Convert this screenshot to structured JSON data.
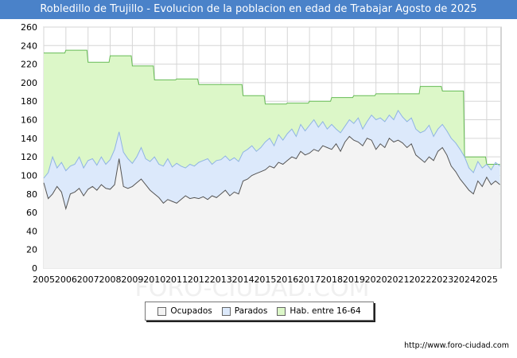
{
  "page": {
    "title": "Robledillo de Trujillo - Evolucion de la poblacion en edad de Trabajar Agosto de 2025",
    "footer": "http://www.foro-ciudad.com",
    "watermark": "FORO-CIUDAD.COM"
  },
  "colors": {
    "title_bg": "#4a82c9",
    "hab_fill": "#dcf7c8",
    "hab_line": "#66bb55",
    "parados_fill": "#dce9fb",
    "parados_line": "#8fb4e3",
    "ocupados_fill": "#f3f3f3",
    "ocupados_line": "#555555",
    "grid": "#d6d6d6"
  },
  "chart_data": {
    "type": "area",
    "title": "Robledillo de Trujillo - Evolucion de la poblacion en edad de Trabajar Agosto de 2025",
    "xlabel": "",
    "ylabel": "",
    "xlim": [
      2005,
      2025.65
    ],
    "ylim": [
      0,
      260
    ],
    "yticks": [
      0,
      20,
      40,
      60,
      80,
      100,
      120,
      140,
      160,
      180,
      200,
      220,
      240,
      260
    ],
    "xticks": [
      "2005",
      "2006",
      "2007",
      "2008",
      "2009",
      "2010",
      "2011",
      "2012",
      "2013",
      "2014",
      "2015",
      "2016",
      "2017",
      "2018",
      "2019",
      "2020",
      "2021",
      "2022",
      "2023",
      "2024",
      "2025"
    ],
    "grid": true,
    "legend_position": "bottom",
    "legend": [
      "Ocupados",
      "Parados",
      "Hab. entre 16-64"
    ],
    "series": [
      {
        "name": "Hab. entre 16-64",
        "x": [
          2005.0,
          2005.95,
          2006.0,
          2006.95,
          2007.0,
          2007.95,
          2008.0,
          2008.95,
          2009.0,
          2009.95,
          2010.0,
          2010.95,
          2011.0,
          2011.95,
          2012.0,
          2012.95,
          2013.0,
          2013.95,
          2014.0,
          2014.95,
          2015.0,
          2015.95,
          2016.0,
          2016.95,
          2017.0,
          2017.95,
          2018.0,
          2018.95,
          2019.0,
          2019.95,
          2020.0,
          2020.95,
          2021.0,
          2021.95,
          2022.0,
          2022.95,
          2023.0,
          2023.95,
          2024.0,
          2024.95,
          2025.0,
          2025.6
        ],
        "values": [
          232,
          232,
          235,
          235,
          222,
          222,
          229,
          229,
          218,
          218,
          203,
          203,
          204,
          204,
          198,
          198,
          198,
          198,
          186,
          186,
          177,
          177,
          178,
          178,
          180,
          180,
          184,
          184,
          186,
          186,
          188,
          188,
          188,
          188,
          196,
          196,
          191,
          191,
          120,
          120,
          112,
          112
        ]
      },
      {
        "name": "Parados",
        "x": [
          2005.0,
          2005.2,
          2005.4,
          2005.6,
          2005.8,
          2006.0,
          2006.2,
          2006.4,
          2006.6,
          2006.8,
          2007.0,
          2007.2,
          2007.4,
          2007.6,
          2007.8,
          2008.0,
          2008.2,
          2008.4,
          2008.6,
          2008.8,
          2009.0,
          2009.2,
          2009.4,
          2009.6,
          2009.8,
          2010.0,
          2010.2,
          2010.4,
          2010.6,
          2010.8,
          2011.0,
          2011.2,
          2011.4,
          2011.6,
          2011.8,
          2012.0,
          2012.2,
          2012.4,
          2012.6,
          2012.8,
          2013.0,
          2013.2,
          2013.4,
          2013.6,
          2013.8,
          2014.0,
          2014.2,
          2014.4,
          2014.6,
          2014.8,
          2015.0,
          2015.2,
          2015.4,
          2015.6,
          2015.8,
          2016.0,
          2016.2,
          2016.4,
          2016.6,
          2016.8,
          2017.0,
          2017.2,
          2017.4,
          2017.6,
          2017.8,
          2018.0,
          2018.2,
          2018.4,
          2018.6,
          2018.8,
          2019.0,
          2019.2,
          2019.4,
          2019.6,
          2019.8,
          2020.0,
          2020.2,
          2020.4,
          2020.6,
          2020.8,
          2021.0,
          2021.2,
          2021.4,
          2021.6,
          2021.8,
          2022.0,
          2022.2,
          2022.4,
          2022.6,
          2022.8,
          2023.0,
          2023.2,
          2023.4,
          2023.6,
          2023.8,
          2024.0,
          2024.2,
          2024.4,
          2024.6,
          2024.8,
          2025.0,
          2025.2,
          2025.4,
          2025.6
        ],
        "values": [
          97,
          103,
          120,
          108,
          114,
          105,
          110,
          112,
          120,
          108,
          116,
          118,
          111,
          120,
          112,
          117,
          128,
          147,
          125,
          118,
          113,
          120,
          130,
          118,
          115,
          120,
          112,
          110,
          118,
          109,
          113,
          110,
          108,
          112,
          110,
          114,
          116,
          118,
          112,
          116,
          117,
          121,
          116,
          119,
          115,
          125,
          128,
          132,
          126,
          130,
          136,
          140,
          132,
          144,
          138,
          145,
          150,
          142,
          155,
          148,
          154,
          160,
          152,
          158,
          150,
          155,
          150,
          146,
          153,
          160,
          156,
          162,
          150,
          158,
          165,
          160,
          162,
          158,
          165,
          160,
          170,
          163,
          158,
          162,
          150,
          146,
          148,
          154,
          142,
          150,
          155,
          148,
          140,
          135,
          128,
          120,
          108,
          103,
          115,
          108,
          112,
          106,
          114,
          110
        ]
      },
      {
        "name": "Ocupados",
        "x": [
          2005.0,
          2005.2,
          2005.4,
          2005.6,
          2005.8,
          2006.0,
          2006.2,
          2006.4,
          2006.6,
          2006.8,
          2007.0,
          2007.2,
          2007.4,
          2007.6,
          2007.8,
          2008.0,
          2008.2,
          2008.4,
          2008.6,
          2008.8,
          2009.0,
          2009.2,
          2009.4,
          2009.6,
          2009.8,
          2010.0,
          2010.2,
          2010.4,
          2010.6,
          2010.8,
          2011.0,
          2011.2,
          2011.4,
          2011.6,
          2011.8,
          2012.0,
          2012.2,
          2012.4,
          2012.6,
          2012.8,
          2013.0,
          2013.2,
          2013.4,
          2013.6,
          2013.8,
          2014.0,
          2014.2,
          2014.4,
          2014.6,
          2014.8,
          2015.0,
          2015.2,
          2015.4,
          2015.6,
          2015.8,
          2016.0,
          2016.2,
          2016.4,
          2016.6,
          2016.8,
          2017.0,
          2017.2,
          2017.4,
          2017.6,
          2017.8,
          2018.0,
          2018.2,
          2018.4,
          2018.6,
          2018.8,
          2019.0,
          2019.2,
          2019.4,
          2019.6,
          2019.8,
          2020.0,
          2020.2,
          2020.4,
          2020.6,
          2020.8,
          2021.0,
          2021.2,
          2021.4,
          2021.6,
          2021.8,
          2022.0,
          2022.2,
          2022.4,
          2022.6,
          2022.8,
          2023.0,
          2023.2,
          2023.4,
          2023.6,
          2023.8,
          2024.0,
          2024.2,
          2024.4,
          2024.6,
          2024.8,
          2025.0,
          2025.2,
          2025.4,
          2025.6
        ],
        "values": [
          92,
          75,
          80,
          88,
          82,
          64,
          80,
          82,
          86,
          78,
          85,
          88,
          84,
          90,
          86,
          85,
          90,
          118,
          88,
          86,
          88,
          92,
          96,
          90,
          84,
          80,
          76,
          70,
          74,
          72,
          70,
          74,
          78,
          75,
          76,
          75,
          77,
          74,
          78,
          76,
          80,
          84,
          78,
          82,
          80,
          94,
          96,
          100,
          102,
          104,
          106,
          110,
          108,
          114,
          112,
          116,
          120,
          118,
          126,
          122,
          124,
          128,
          126,
          132,
          130,
          128,
          134,
          126,
          136,
          142,
          138,
          136,
          132,
          140,
          138,
          128,
          134,
          130,
          140,
          136,
          138,
          135,
          130,
          134,
          122,
          118,
          114,
          120,
          116,
          126,
          130,
          122,
          110,
          104,
          96,
          90,
          84,
          80,
          94,
          88,
          98,
          90,
          94,
          90
        ]
      }
    ]
  }
}
